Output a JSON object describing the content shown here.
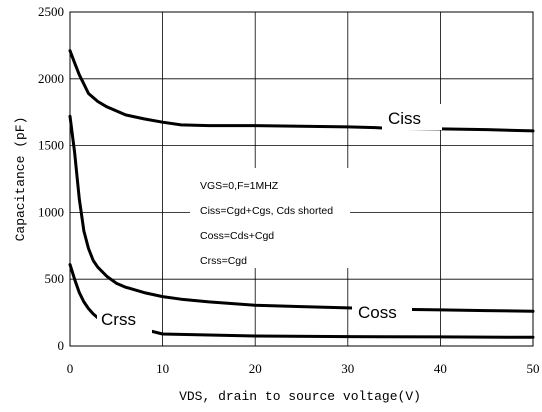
{
  "chart_data": {
    "type": "line",
    "xlabel": "VDS, drain to source voltage(V)",
    "ylabel": "Capacitance (pF)",
    "xlim": [
      0,
      50
    ],
    "ylim": [
      0,
      2500
    ],
    "x_ticks": [
      "0",
      "10",
      "20",
      "30",
      "40",
      "50"
    ],
    "y_ticks": [
      "0",
      "500",
      "1000",
      "1500",
      "2000",
      "2500"
    ],
    "grid": true,
    "legend": "none",
    "line_color": "#000000",
    "annotations": [
      "VGS=0,F=1MHZ",
      "Ciss=Cgd+Cgs, Cds shorted",
      "Coss=Cds+Cgd",
      "Crss=Cgd"
    ],
    "series": [
      {
        "name": "Ciss",
        "x": [
          0,
          0.5,
          1,
          1.5,
          2,
          3,
          4,
          5,
          6,
          8,
          10,
          12,
          15,
          20,
          25,
          30,
          33,
          34,
          40,
          45,
          50
        ],
        "y": [
          2210,
          2120,
          2030,
          1960,
          1890,
          1830,
          1790,
          1760,
          1730,
          1700,
          1675,
          1655,
          1650,
          1650,
          1645,
          1640,
          1635,
          1630,
          1625,
          1620,
          1610
        ]
      },
      {
        "name": "Coss",
        "x": [
          0,
          0.5,
          1,
          1.5,
          2,
          2.5,
          3,
          4,
          5,
          6,
          8,
          10,
          12,
          15,
          20,
          25,
          30,
          35,
          40,
          45,
          50
        ],
        "y": [
          1720,
          1450,
          1100,
          860,
          730,
          640,
          590,
          520,
          470,
          440,
          400,
          370,
          350,
          330,
          305,
          295,
          285,
          275,
          270,
          265,
          260
        ]
      },
      {
        "name": "Crss",
        "x": [
          0,
          0.5,
          1,
          1.5,
          2,
          2.5,
          3,
          10,
          20,
          30,
          40,
          50
        ],
        "y": [
          610,
          500,
          400,
          330,
          280,
          240,
          210,
          90,
          75,
          70,
          68,
          65
        ]
      }
    ]
  }
}
